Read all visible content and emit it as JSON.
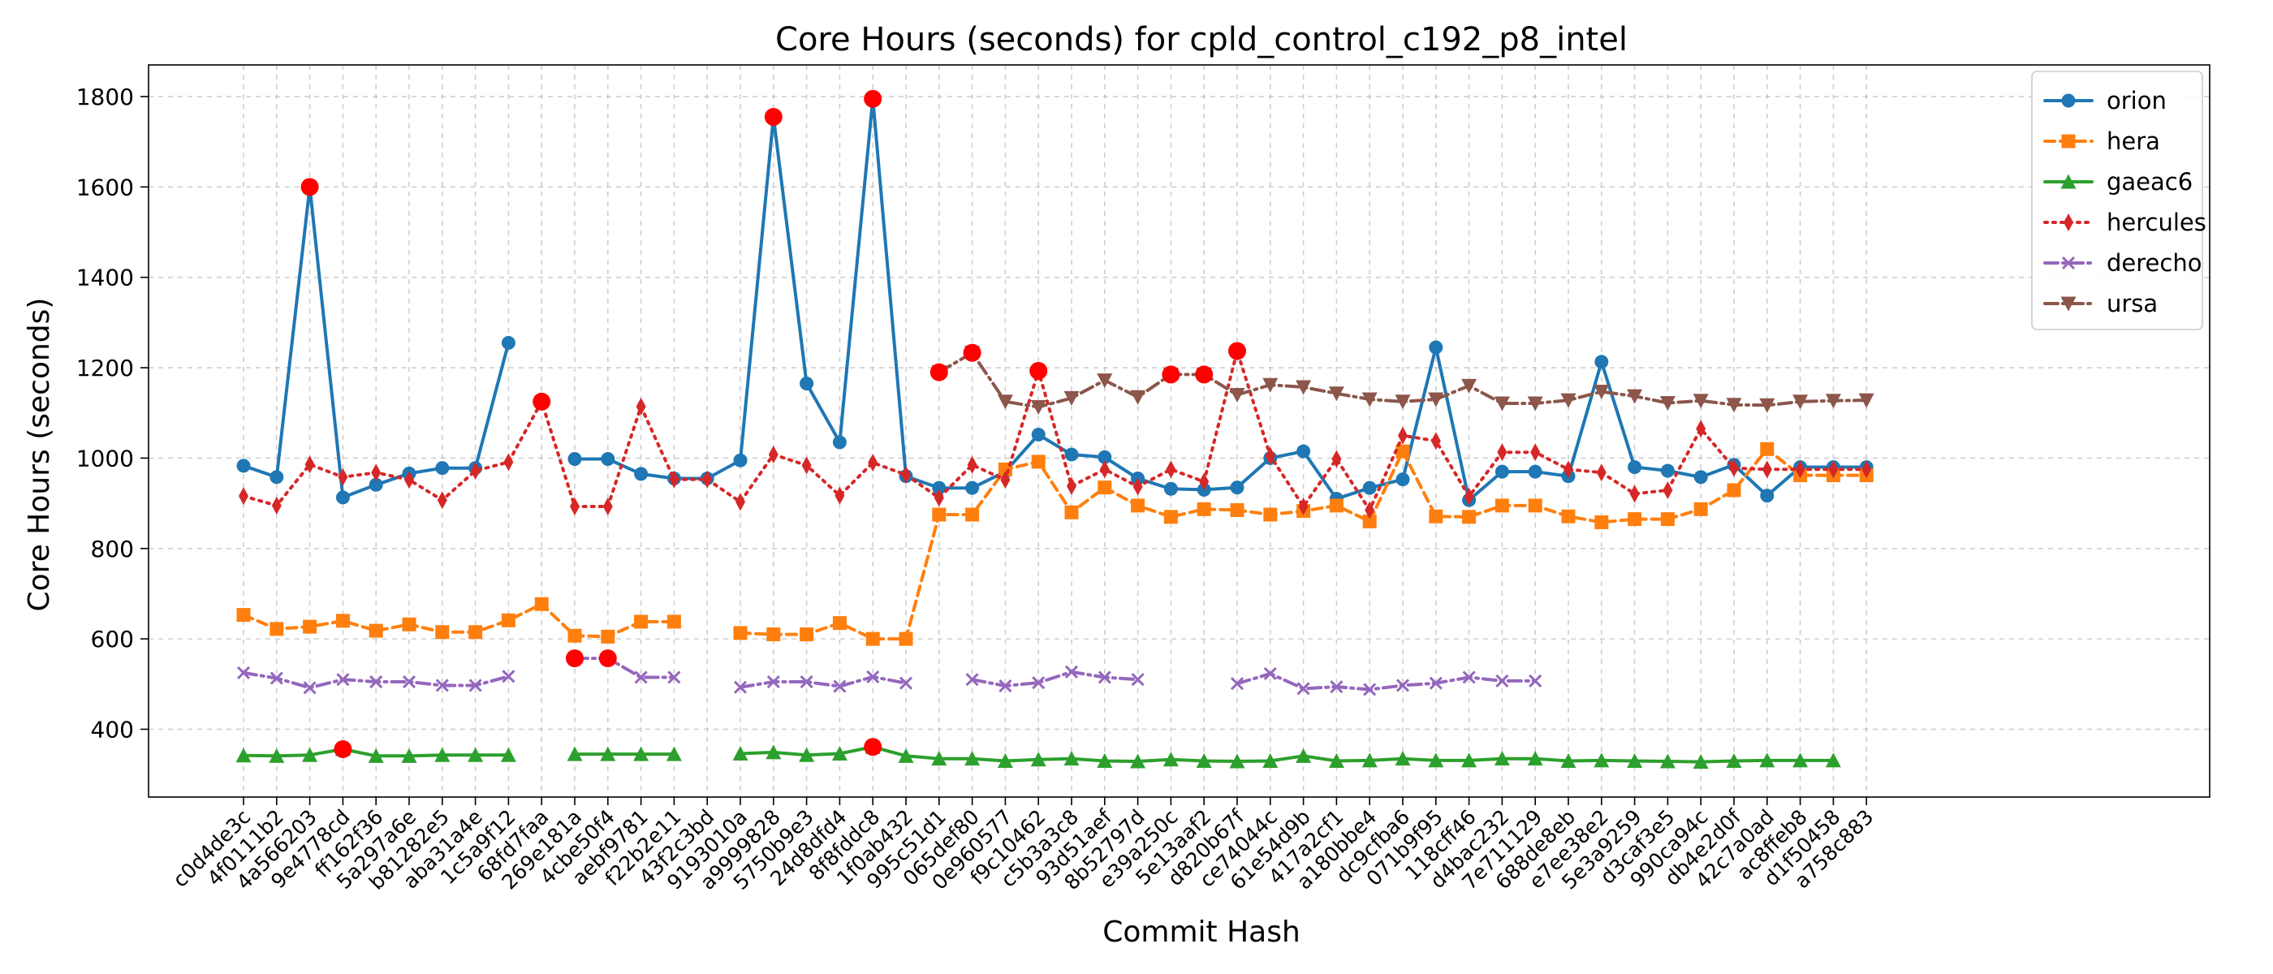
{
  "chart_data": {
    "type": "line",
    "title": "Core Hours (seconds) for cpld_control_c192_p8_intel",
    "xlabel": "Commit Hash",
    "ylabel": "Core Hours (seconds)",
    "ylim": [
      250,
      1870
    ],
    "yticks": [
      400,
      600,
      800,
      1000,
      1200,
      1400,
      1600,
      1800
    ],
    "grid": true,
    "legend_position": "top-right",
    "categories": [
      "c0d4de3c",
      "4f0111b2",
      "4a566203",
      "9e4778cd",
      "ff162f36",
      "5a297a6e",
      "b81282e5",
      "aba31a4e",
      "1c5a9f12",
      "68fd7faa",
      "269e181a",
      "4cbe50f4",
      "aebf9781",
      "f22b2e11",
      "43f2c3bd",
      "9193010a",
      "a9999828",
      "5750b9e3",
      "24d8dfd4",
      "8f8fddc8",
      "1f0ab432",
      "995c51d1",
      "065def80",
      "0e960577",
      "f9c10462",
      "c5b3a3c8",
      "93d51aef",
      "8b52797d",
      "e39a250c",
      "5e13aaf2",
      "d820b67f",
      "ce74044c",
      "61e54d9b",
      "417a2cf1",
      "a180bbe4",
      "dc9cfba6",
      "071b9f95",
      "118cff46",
      "d4bac232",
      "7e711129",
      "688de8eb",
      "e7ee38e2",
      "5e3a9259",
      "d3caf3e5",
      "990ca94c",
      "db4e2d0f",
      "42c7a0ad",
      "ac8ffeb8",
      "d1f50458",
      "a758c883"
    ],
    "series": [
      {
        "name": "orion",
        "color": "#1f77b4",
        "marker": "circle",
        "dash": "",
        "values": [
          983,
          958,
          1600,
          913,
          941,
          966,
          978,
          978,
          1255,
          null,
          998,
          998,
          965,
          955,
          955,
          995,
          1755,
          1165,
          1035,
          1795,
          960,
          934,
          934,
          970,
          1052,
          1008,
          1002,
          955,
          932,
          930,
          935,
          1000,
          1015,
          910,
          934,
          953,
          1245,
          907,
          970,
          970,
          960,
          1213,
          980,
          972,
          958,
          985,
          917,
          980,
          980,
          980
        ],
        "highlight": [
          2,
          16,
          19
        ]
      },
      {
        "name": "hera",
        "color": "#ff7f0e",
        "marker": "square",
        "dash": "12 7",
        "values": [
          653,
          622,
          627,
          640,
          618,
          632,
          615,
          615,
          641,
          677,
          607,
          605,
          638,
          638,
          null,
          613,
          610,
          610,
          635,
          600,
          600,
          875,
          875,
          975,
          992,
          880,
          935,
          895,
          870,
          887,
          885,
          875,
          883,
          895,
          860,
          1015,
          871,
          870,
          895,
          895,
          871,
          858,
          865,
          865,
          887,
          929,
          1020,
          962,
          962,
          962
        ],
        "highlight": []
      },
      {
        "name": "gaeac6",
        "color": "#2ca02c",
        "marker": "triangle-up",
        "dash": "",
        "values": [
          342,
          341,
          343,
          356,
          341,
          341,
          343,
          343,
          343,
          null,
          345,
          345,
          345,
          345,
          null,
          346,
          349,
          343,
          346,
          361,
          341,
          335,
          335,
          330,
          333,
          335,
          330,
          329,
          333,
          330,
          329,
          330,
          341,
          330,
          331,
          335,
          331,
          331,
          335,
          335,
          330,
          331,
          330,
          329,
          328,
          330,
          331,
          331,
          331,
          null
        ],
        "highlight": [
          3,
          19
        ]
      },
      {
        "name": "hercules",
        "color": "#d62728",
        "marker": "thin-diamond",
        "dash": "3 7",
        "values": [
          916,
          895,
          986,
          958,
          968,
          952,
          907,
          972,
          991,
          1125,
          893,
          893,
          1114,
          953,
          953,
          903,
          1008,
          984,
          917,
          990,
          963,
          912,
          985,
          952,
          1193,
          938,
          975,
          937,
          975,
          948,
          1237,
          1005,
          893,
          998,
          885,
          1050,
          1038,
          915,
          1013,
          1013,
          975,
          968,
          921,
          929,
          1065,
          978,
          975,
          975,
          975,
          975
        ],
        "highlight": [
          9,
          24,
          30
        ]
      },
      {
        "name": "derecho",
        "color": "#9467bd",
        "marker": "x",
        "dash": "16 6 3 6",
        "values": [
          525,
          513,
          492,
          510,
          505,
          505,
          497,
          497,
          517,
          null,
          557,
          557,
          515,
          515,
          null,
          493,
          505,
          505,
          495,
          516,
          502,
          null,
          510,
          496,
          503,
          527,
          515,
          510,
          null,
          null,
          501,
          523,
          490,
          494,
          488,
          497,
          502,
          515,
          507,
          507,
          null,
          null,
          null,
          null,
          null,
          null,
          null,
          null,
          null,
          null
        ],
        "highlight": [
          10,
          11
        ]
      },
      {
        "name": "ursa",
        "color": "#8c564b",
        "marker": "triangle-down",
        "dash": "16 6 3 6",
        "values": [
          null,
          null,
          null,
          null,
          null,
          null,
          null,
          null,
          null,
          null,
          null,
          null,
          null,
          null,
          null,
          null,
          null,
          null,
          null,
          null,
          null,
          1190,
          1233,
          1125,
          1113,
          1133,
          1172,
          1135,
          1185,
          1185,
          1140,
          1162,
          1157,
          1143,
          1130,
          1125,
          1130,
          1160,
          1121,
          1121,
          1128,
          1147,
          1137,
          1122,
          1127,
          1118,
          1117,
          1125,
          1127,
          1128
        ],
        "highlight": [
          21,
          22,
          28,
          29
        ]
      }
    ],
    "highlight_color": "#ff0000"
  }
}
